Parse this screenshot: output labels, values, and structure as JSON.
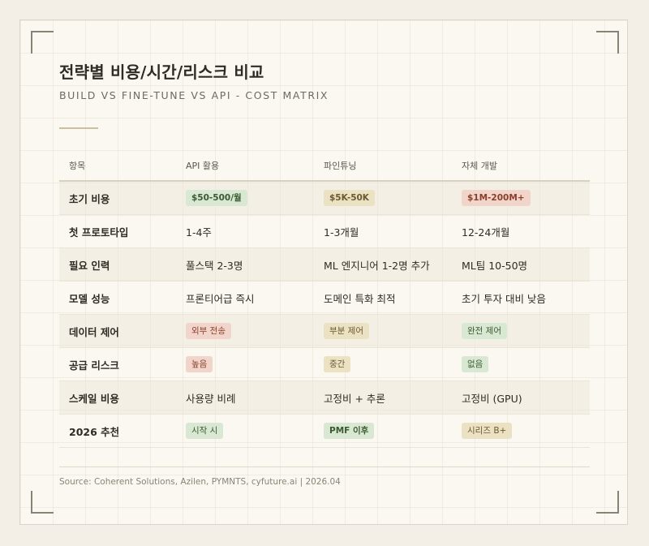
{
  "header": {
    "title": "전략별 비용/시간/리스크 비교",
    "subtitle": "BUILD VS FINE-TUNE VS API - COST MATRIX"
  },
  "table": {
    "columns": [
      "항목",
      "API 활용",
      "파인튜닝",
      "자체 개발"
    ],
    "rows": [
      {
        "label": "초기 비용",
        "cells": [
          {
            "text": "$50-500/월",
            "style": "badge",
            "color": "green",
            "bold": true
          },
          {
            "text": "$5K-50K",
            "style": "badge",
            "color": "tan",
            "bold": true
          },
          {
            "text": "$1M-200M+",
            "style": "badge",
            "color": "red",
            "bold": true
          }
        ]
      },
      {
        "label": "첫 프로토타입",
        "cells": [
          {
            "text": "1-4주",
            "style": "plain"
          },
          {
            "text": "1-3개월",
            "style": "plain"
          },
          {
            "text": "12-24개월",
            "style": "plain"
          }
        ]
      },
      {
        "label": "필요 인력",
        "cells": [
          {
            "text": "풀스택 2-3명",
            "style": "plain"
          },
          {
            "text": "ML 엔지니어 1-2명 추가",
            "style": "plain"
          },
          {
            "text": "ML팀 10-50명",
            "style": "plain"
          }
        ]
      },
      {
        "label": "모델 성능",
        "cells": [
          {
            "text": "프론티어급 즉시",
            "style": "plain"
          },
          {
            "text": "도메인 특화 최적",
            "style": "plain"
          },
          {
            "text": "초기 투자 대비 낮음",
            "style": "plain"
          }
        ]
      },
      {
        "label": "데이터 제어",
        "cells": [
          {
            "text": "외부 전송",
            "style": "badge",
            "color": "red",
            "bold": false
          },
          {
            "text": "부분 제어",
            "style": "badge",
            "color": "tan",
            "bold": false
          },
          {
            "text": "완전 제어",
            "style": "badge",
            "color": "green",
            "bold": false
          }
        ]
      },
      {
        "label": "공급 리스크",
        "cells": [
          {
            "text": "높음",
            "style": "badge",
            "color": "red",
            "bold": false
          },
          {
            "text": "중간",
            "style": "badge",
            "color": "tan",
            "bold": false
          },
          {
            "text": "없음",
            "style": "badge",
            "color": "green",
            "bold": false
          }
        ]
      },
      {
        "label": "스케일 비용",
        "cells": [
          {
            "text": "사용량 비례",
            "style": "plain"
          },
          {
            "text": "고정비 + 추론",
            "style": "plain"
          },
          {
            "text": "고정비 (GPU)",
            "style": "plain"
          }
        ]
      },
      {
        "label": "2026 추천",
        "cells": [
          {
            "text": "시작 시",
            "style": "badge",
            "color": "green",
            "bold": false
          },
          {
            "text": "PMF 이후",
            "style": "badge",
            "color": "green",
            "bold": true
          },
          {
            "text": "시리즈 B+",
            "style": "badge",
            "color": "tan",
            "bold": false
          }
        ]
      }
    ]
  },
  "footer": {
    "source": "Source: Coherent Solutions, Azilen, PYMNTS, cyfuture.ai | 2026.04"
  },
  "colors": {
    "green_badge": "#d9e8d2",
    "tan_badge": "#ebe1c3",
    "red_badge": "#f1d5cb",
    "background": "#fbf8f1"
  }
}
